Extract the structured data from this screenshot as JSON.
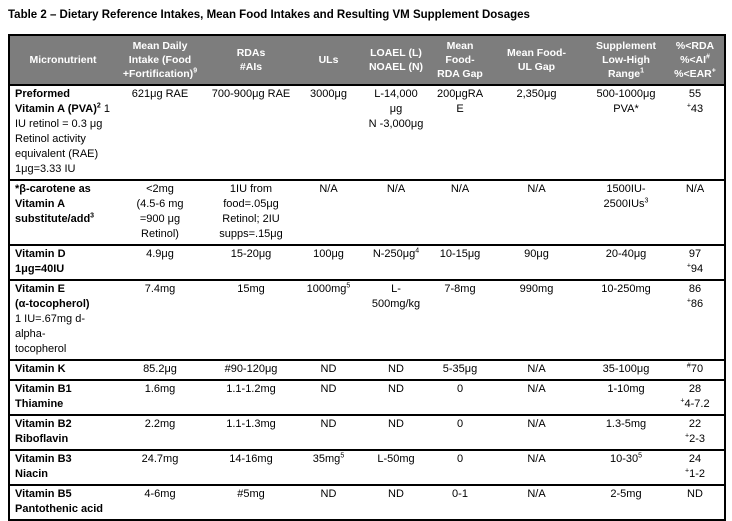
{
  "title": "Table 2 – Dietary Reference Intakes, Mean Food Intakes and Resulting VM Supplement Dosages",
  "colors": {
    "header_bg": "#7d7d7d",
    "header_text": "#ffffff",
    "border": "#000000",
    "page_bg": "#ffffff"
  },
  "table": {
    "columns": [
      {
        "id": "micronutrient",
        "label": "Micronutrient"
      },
      {
        "id": "mean-daily-intake",
        "label": "Mean Daily\nIntake (Food\n+Fortification)^{9}"
      },
      {
        "id": "rdas-ais",
        "label": "RDAs\n#AIs"
      },
      {
        "id": "uls",
        "label": "ULs"
      },
      {
        "id": "loael-noael",
        "label": "LOAEL (L)\nNOAEL (N)"
      },
      {
        "id": "mean-food-rda-gap",
        "label": "Mean\nFood-\nRDA Gap"
      },
      {
        "id": "mean-food-ul-gap",
        "label": "Mean Food-\nUL Gap"
      },
      {
        "id": "supplement-range",
        "label": "Supplement\nLow-High\nRange^{1}"
      },
      {
        "id": "pct-below",
        "label": "%<RDA\n%<AI^{#}\n%<EAR^{+}"
      }
    ],
    "rows": [
      {
        "id": "preformed-vitamin-a",
        "cells": [
          "**Preformed\nVitamin A (PVA)^{2}** 1\nIU retinol = 0.3 μg\nRetinol activity\nequivalent (RAE)\n1μg=3.33 IU",
          "621μg RAE",
          "700-900μg RAE",
          "3000μg",
          "L-14,000\nμg\nN -3,000μg",
          "200μgRAE",
          "2,350μg",
          "500-1000μg\nPVA*",
          "55\n^{+}43"
        ]
      },
      {
        "id": "beta-carotene",
        "cells": [
          "***β-carotene as\nVitamin A\nsubstitute/add^{3}**",
          "<2mg\n(4.5-6 mg\n=900 μg\nRetinol)",
          "1IU from\nfood=.05μg\nRetinol; 2IU\nsupps=.15μg",
          "N/A",
          "N/A",
          "N/A",
          "N/A",
          "1500IU-\n2500IUs^{3}",
          "N/A"
        ]
      },
      {
        "id": "vitamin-d",
        "cells": [
          "**Vitamin D\n1μg=40IU**",
          "4.9μg",
          "15-20μg",
          "100μg",
          "N-250μg^{4}",
          "10-15μg",
          "90μg",
          "20-40μg",
          "97\n^{+}94"
        ]
      },
      {
        "id": "vitamin-e",
        "cells": [
          "**Vitamin E\n(α-tocopherol)**\n1 IU=.67mg d-\nalpha-\ntocopherol",
          "7.4mg",
          "15mg",
          "1000mg^{5}",
          "L-\n500mg/kg",
          "7-8mg",
          "990mg",
          "10-250mg",
          "86\n^{+}86"
        ]
      },
      {
        "id": "vitamin-k",
        "cells": [
          "**Vitamin K**",
          "85.2μg",
          "#90-120μg",
          "ND",
          "ND",
          "5-35μg",
          "N/A",
          "35-100μg",
          "^{#}70"
        ]
      },
      {
        "id": "vitamin-b1",
        "cells": [
          "**Vitamin B1\nThiamine**",
          "1.6mg",
          "1.1-1.2mg",
          "ND",
          "ND",
          "0",
          "N/A",
          "1-10mg",
          "28\n^{+}4-7.2"
        ]
      },
      {
        "id": "vitamin-b2",
        "cells": [
          "**Vitamin B2\nRiboflavin**",
          "2.2mg",
          "1.1-1.3mg",
          "ND",
          "ND",
          "0",
          "N/A",
          "1.3-5mg",
          "22\n^{+}2-3"
        ]
      },
      {
        "id": "vitamin-b3",
        "cells": [
          "**Vitamin B3\nNiacin**",
          "24.7mg",
          "14-16mg",
          "35mg^{5}",
          "L-50mg",
          "0",
          "N/A",
          "10-30^{5}",
          "24\n^{+}1-2"
        ]
      },
      {
        "id": "vitamin-b5",
        "cells": [
          "**Vitamin B5\nPantothenic acid**",
          "4-6mg",
          "#5mg",
          "ND",
          "ND",
          "0-1",
          "N/A",
          "2-5mg",
          "ND"
        ]
      }
    ]
  }
}
